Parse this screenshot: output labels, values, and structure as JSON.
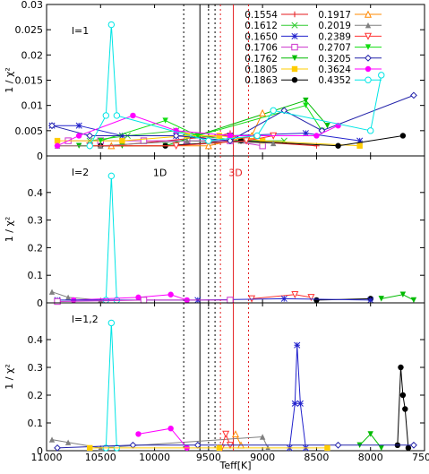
{
  "chart_data": {
    "type": "line",
    "xlabel": "Teff[K]",
    "xlim": [
      11000,
      7500
    ],
    "x_ticks": [
      11000,
      10500,
      10000,
      9500,
      9000,
      8500,
      8000,
      7500
    ],
    "vertical_lines": {
      "solid_black": [
        9580
      ],
      "solid_red": [
        9270
      ],
      "dotted_black": [
        9730,
        9500,
        9440
      ],
      "dotted_red": [
        9390,
        9130
      ]
    },
    "panels": [
      {
        "label": "l=1",
        "ylabel": "1 / χ²",
        "ylim": [
          0,
          0.03
        ],
        "y_ticks": [
          "0",
          "0.005",
          "0.01",
          "0.015",
          "0.02",
          "0.025",
          "0.03"
        ],
        "legend_position": "top-right",
        "annotations": [],
        "series": [
          {
            "color": "#e41a1c",
            "marker": "plus",
            "points": [
              [
                10900,
                0.002
              ],
              [
                10400,
                0.002
              ],
              [
                9400,
                0.004
              ],
              [
                9300,
                0.0045
              ],
              [
                9200,
                0.003
              ],
              [
                8500,
                0.002
              ]
            ]
          },
          {
            "color": "#33cc33",
            "marker": "x",
            "points": [
              [
                10600,
                0.003
              ],
              [
                10250,
                0.004
              ],
              [
                9800,
                0.005
              ],
              [
                9600,
                0.004
              ],
              [
                9200,
                0.003
              ],
              [
                8800,
                0.003
              ]
            ]
          },
          {
            "color": "#2222cc",
            "marker": "asterisk",
            "points": [
              [
                10950,
                0.006
              ],
              [
                10700,
                0.006
              ],
              [
                10300,
                0.004
              ],
              [
                9800,
                0.004
              ],
              [
                9300,
                0.004
              ],
              [
                8600,
                0.0045
              ],
              [
                8100,
                0.003
              ]
            ]
          },
          {
            "color": "#cc33cc",
            "marker": "square",
            "points": [
              [
                10800,
                0.003
              ],
              [
                10500,
                0.003
              ],
              [
                10100,
                0.003
              ],
              [
                9700,
                0.003
              ],
              [
                9300,
                0.003
              ],
              [
                9000,
                0.002
              ]
            ]
          },
          {
            "color": "#00bb00",
            "marker": "tri-down-filled",
            "points": [
              [
                10700,
                0.002
              ],
              [
                10300,
                0.002
              ],
              [
                9900,
                0.002
              ],
              [
                8600,
                0.011
              ],
              [
                8400,
                0.006
              ]
            ]
          },
          {
            "color": "#ffcc00",
            "marker": "square-filled",
            "points": [
              [
                10900,
                0.003
              ],
              [
                10300,
                0.003
              ],
              [
                9700,
                0.004
              ],
              [
                9400,
                0.004
              ],
              [
                9000,
                0.003
              ],
              [
                8100,
                0.002
              ]
            ]
          },
          {
            "color": "#000000",
            "marker": "circle-filled",
            "points": [
              [
                10500,
                0.002
              ],
              [
                9900,
                0.002
              ],
              [
                9200,
                0.003
              ],
              [
                8300,
                0.002
              ],
              [
                7700,
                0.004
              ]
            ]
          },
          {
            "color": "#ff8800",
            "marker": "tri-up",
            "points": [
              [
                10400,
                0.002
              ],
              [
                9500,
                0.002
              ],
              [
                9100,
                0.004
              ],
              [
                9000,
                0.0085
              ]
            ]
          },
          {
            "color": "#808080",
            "marker": "tri-up-filled",
            "points": [
              [
                10900,
                0.002
              ],
              [
                10500,
                0.002
              ],
              [
                9700,
                0.003
              ],
              [
                8900,
                0.0025
              ]
            ]
          },
          {
            "color": "#ff3333",
            "marker": "tri-down",
            "points": [
              [
                10600,
                0.002
              ],
              [
                9800,
                0.002
              ],
              [
                9150,
                0.003
              ],
              [
                8900,
                0.004
              ]
            ]
          },
          {
            "color": "#11dd11",
            "marker": "tri-down-filled",
            "points": [
              [
                10500,
                0.003
              ],
              [
                9900,
                0.007
              ],
              [
                9600,
                0.004
              ],
              [
                8600,
                0.01
              ],
              [
                8450,
                0.005
              ]
            ]
          },
          {
            "color": "#2222aa",
            "marker": "diamond",
            "points": [
              [
                10950,
                0.006
              ],
              [
                10600,
                0.004
              ],
              [
                9800,
                0.004
              ],
              [
                9300,
                0.003
              ],
              [
                8800,
                0.009
              ],
              [
                8450,
                0.005
              ],
              [
                7600,
                0.012
              ]
            ]
          },
          {
            "color": "#ff00ff",
            "marker": "circle-filled",
            "points": [
              [
                10900,
                0.002
              ],
              [
                10700,
                0.004
              ],
              [
                10200,
                0.008
              ],
              [
                9800,
                0.005
              ],
              [
                9300,
                0.004
              ],
              [
                8500,
                0.004
              ],
              [
                8300,
                0.006
              ]
            ]
          },
          {
            "color": "#00e5e5",
            "marker": "circle",
            "points": [
              [
                10600,
                0.002
              ],
              [
                10450,
                0.008
              ],
              [
                10400,
                0.026
              ],
              [
                10350,
                0.008
              ],
              [
                9500,
                0.003
              ],
              [
                9050,
                0.004
              ],
              [
                8900,
                0.009
              ],
              [
                8000,
                0.005
              ],
              [
                7900,
                0.016
              ]
            ]
          }
        ]
      },
      {
        "label": "l=2",
        "ylabel": "1 / χ²",
        "ylim": [
          0,
          0.5
        ],
        "y_ticks": [
          "0",
          "0.1",
          "0.2",
          "0.3",
          "0.4"
        ],
        "legend_position": "",
        "annotations": [
          {
            "text": "1D",
            "color": "#000000",
            "x": 9950,
            "y": 0.46
          },
          {
            "text": "3D",
            "color": "#e41a1c",
            "x": 9250,
            "y": 0.46
          }
        ],
        "series": [
          {
            "color": "#808080",
            "marker": "tri-up-filled",
            "points": [
              [
                10950,
                0.04
              ],
              [
                10800,
                0.02
              ],
              [
                10500,
                0.01
              ]
            ]
          },
          {
            "color": "#00e5e5",
            "marker": "circle",
            "points": [
              [
                10450,
                0.01
              ],
              [
                10400,
                0.46
              ],
              [
                10350,
                0.01
              ]
            ]
          },
          {
            "color": "#ff00ff",
            "marker": "circle-filled",
            "points": [
              [
                10750,
                0.01
              ],
              [
                10150,
                0.02
              ],
              [
                9850,
                0.03
              ],
              [
                9700,
                0.01
              ]
            ]
          },
          {
            "color": "#ff3333",
            "marker": "tri-down",
            "points": [
              [
                9100,
                0.015
              ],
              [
                8700,
                0.03
              ],
              [
                8550,
                0.02
              ]
            ]
          },
          {
            "color": "#00bb00",
            "marker": "tri-down-filled",
            "points": [
              [
                7900,
                0.015
              ],
              [
                7700,
                0.03
              ],
              [
                7600,
                0.01
              ]
            ]
          },
          {
            "color": "#000000",
            "marker": "circle-filled",
            "points": [
              [
                8500,
                0.01
              ],
              [
                8000,
                0.015
              ]
            ]
          },
          {
            "color": "#2222cc",
            "marker": "asterisk",
            "points": [
              [
                10900,
                0.01
              ],
              [
                9600,
                0.01
              ],
              [
                8800,
                0.015
              ],
              [
                8000,
                0.01
              ]
            ]
          },
          {
            "color": "#cc33cc",
            "marker": "square",
            "points": [
              [
                10900,
                0.005
              ],
              [
                10100,
                0.01
              ],
              [
                9300,
                0.01
              ]
            ]
          }
        ]
      },
      {
        "label": "l=1,2",
        "ylabel": "1 / χ²",
        "ylim": [
          0,
          0.5
        ],
        "y_ticks": [
          "0",
          "0.1",
          "0.2",
          "0.3",
          "0.4"
        ],
        "legend_position": "",
        "annotations": [],
        "series": [
          {
            "color": "#808080",
            "marker": "tri-up-filled",
            "points": [
              [
                10950,
                0.04
              ],
              [
                10800,
                0.03
              ],
              [
                10500,
                0.01
              ],
              [
                9000,
                0.05
              ],
              [
                8950,
                0.01
              ]
            ]
          },
          {
            "color": "#00e5e5",
            "marker": "circle",
            "points": [
              [
                10450,
                0.01
              ],
              [
                10400,
                0.46
              ],
              [
                10350,
                0.01
              ]
            ]
          },
          {
            "color": "#ff00ff",
            "marker": "circle-filled",
            "points": [
              [
                10150,
                0.06
              ],
              [
                9850,
                0.08
              ],
              [
                9700,
                0.01
              ]
            ]
          },
          {
            "color": "#2222cc",
            "marker": "asterisk",
            "points": [
              [
                8750,
                0.01
              ],
              [
                8700,
                0.17
              ],
              [
                8680,
                0.38
              ],
              [
                8650,
                0.17
              ],
              [
                8600,
                0.01
              ]
            ]
          },
          {
            "color": "#000000",
            "marker": "circle-filled",
            "points": [
              [
                7750,
                0.02
              ],
              [
                7720,
                0.3
              ],
              [
                7700,
                0.2
              ],
              [
                7680,
                0.15
              ],
              [
                7650,
                0.01
              ]
            ]
          },
          {
            "color": "#ff3333",
            "marker": "tri-down",
            "points": [
              [
                9380,
                0.01
              ],
              [
                9340,
                0.06
              ],
              [
                9300,
                0.02
              ]
            ]
          },
          {
            "color": "#ff8800",
            "marker": "tri-up",
            "points": [
              [
                9250,
                0.06
              ],
              [
                9200,
                0.02
              ]
            ]
          },
          {
            "color": "#00bb00",
            "marker": "tri-down-filled",
            "points": [
              [
                8100,
                0.02
              ],
              [
                8000,
                0.06
              ],
              [
                7900,
                0.01
              ]
            ]
          },
          {
            "color": "#2222aa",
            "marker": "diamond",
            "points": [
              [
                10900,
                0.01
              ],
              [
                10200,
                0.02
              ],
              [
                9600,
                0.02
              ],
              [
                8300,
                0.02
              ],
              [
                7600,
                0.02
              ]
            ]
          },
          {
            "color": "#ffcc00",
            "marker": "square-filled",
            "points": [
              [
                10600,
                0.01
              ],
              [
                9400,
                0.01
              ],
              [
                8400,
                0.01
              ]
            ]
          }
        ]
      }
    ],
    "legend": [
      {
        "label": "0.1554",
        "color": "#e41a1c",
        "marker": "plus"
      },
      {
        "label": "0.1612",
        "color": "#33cc33",
        "marker": "x"
      },
      {
        "label": "0.1650",
        "color": "#2222cc",
        "marker": "asterisk"
      },
      {
        "label": "0.1706",
        "color": "#cc33cc",
        "marker": "square"
      },
      {
        "label": "0.1762",
        "color": "#00bb00",
        "marker": "tri-down-filled"
      },
      {
        "label": "0.1805",
        "color": "#ffcc00",
        "marker": "square-filled"
      },
      {
        "label": "0.1863",
        "color": "#000000",
        "marker": "circle-filled"
      },
      {
        "label": "0.1917",
        "color": "#ff8800",
        "marker": "tri-up"
      },
      {
        "label": "0.2019",
        "color": "#808080",
        "marker": "tri-up-filled"
      },
      {
        "label": "0.2389",
        "color": "#ff3333",
        "marker": "tri-down"
      },
      {
        "label": "0.2707",
        "color": "#11dd11",
        "marker": "tri-down-filled"
      },
      {
        "label": "0.3205",
        "color": "#2222aa",
        "marker": "diamond"
      },
      {
        "label": "0.3624",
        "color": "#ff00ff",
        "marker": "circle-filled"
      },
      {
        "label": "0.4352",
        "color": "#00e5e5",
        "marker": "circle"
      }
    ]
  }
}
